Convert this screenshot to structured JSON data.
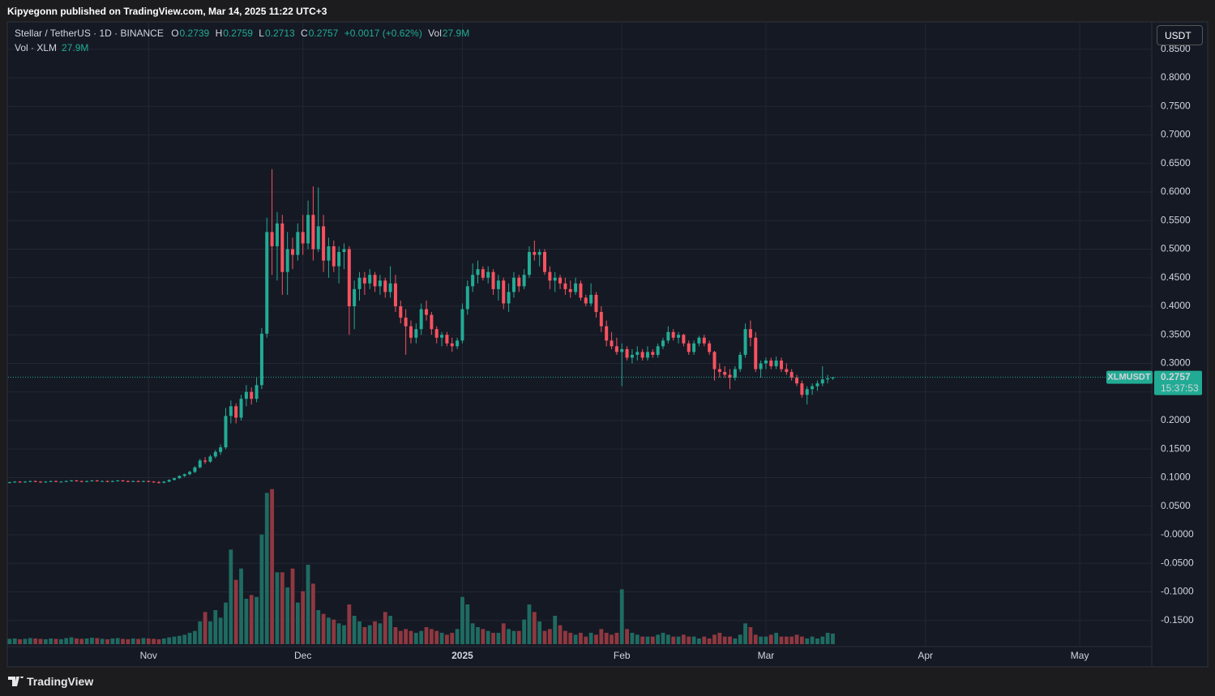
{
  "header": "Kipyegonn published on TradingView.com, Mar 14, 2025 11:22 UTC+3",
  "footer": "TradingView",
  "chart_data": {
    "type": "candlestick",
    "title": "Stellar / TetherUS · 1D · BINANCE",
    "ohlc_legend": [
      {
        "label": "O",
        "value": 0.2739
      },
      {
        "label": "H",
        "value": 0.2759
      },
      {
        "label": "L",
        "value": 0.2713
      },
      {
        "label": "C",
        "value": 0.2757
      }
    ],
    "change": "+0.0017 (+0.62%)",
    "vol_label": "Vol",
    "vol_value": "27.9M",
    "volume_title": "Vol · XLM",
    "volume_value": "27.9M",
    "currency": "USDT",
    "symbol": "XLMUSDT",
    "last_price": 0.2757,
    "countdown": "15:37:53",
    "up_color": "#22ab94",
    "down_color": "#f7525f",
    "up_volume_color": "#1f6b62",
    "down_volume_color": "#8f3840",
    "grid": true,
    "ylim": [
      -0.2,
      0.9
    ],
    "yticks": [
      {
        "value": -0.15,
        "label": "-0.1500"
      },
      {
        "value": -0.1,
        "label": "-0.1000"
      },
      {
        "value": -0.05,
        "label": "-0.0500"
      },
      {
        "value": 0,
        "label": "-0.0000"
      },
      {
        "value": 0.05,
        "label": "0.0500"
      },
      {
        "value": 0.1,
        "label": "0.1000"
      },
      {
        "value": 0.15,
        "label": "0.1500"
      },
      {
        "value": 0.2,
        "label": "0.2000"
      },
      {
        "value": 0.25,
        "label": "0.2500"
      },
      {
        "value": 0.3,
        "label": "0.3000"
      },
      {
        "value": 0.35,
        "label": "0.3500"
      },
      {
        "value": 0.4,
        "label": "0.4000"
      },
      {
        "value": 0.45,
        "label": "0.4500"
      },
      {
        "value": 0.5,
        "label": "0.5000"
      },
      {
        "value": 0.55,
        "label": "0.5500"
      },
      {
        "value": 0.6,
        "label": "0.6000"
      },
      {
        "value": 0.65,
        "label": "0.6500"
      },
      {
        "value": 0.7,
        "label": "0.7000"
      },
      {
        "value": 0.75,
        "label": "0.7500"
      },
      {
        "value": 0.8,
        "label": "0.8000"
      },
      {
        "value": 0.85,
        "label": "0.8500"
      }
    ],
    "xlim": [
      -0.3,
      222
    ],
    "xticks": [
      {
        "value": 27,
        "label": "Nov"
      },
      {
        "value": 57,
        "label": "Dec"
      },
      {
        "value": 88,
        "label": "2025"
      },
      {
        "value": 119,
        "label": "Feb"
      },
      {
        "value": 147,
        "label": "Mar"
      },
      {
        "value": 178,
        "label": "Apr"
      },
      {
        "value": 208,
        "label": "May"
      }
    ],
    "volume_lim": [
      0,
      450
    ],
    "candles": [
      [
        0.091,
        0.093,
        0.09,
        0.092
      ],
      [
        0.092,
        0.094,
        0.091,
        0.093
      ],
      [
        0.093,
        0.094,
        0.091,
        0.092
      ],
      [
        0.092,
        0.094,
        0.091,
        0.093
      ],
      [
        0.093,
        0.095,
        0.092,
        0.094
      ],
      [
        0.094,
        0.095,
        0.092,
        0.093
      ],
      [
        0.093,
        0.094,
        0.091,
        0.092
      ],
      [
        0.092,
        0.094,
        0.091,
        0.093
      ],
      [
        0.093,
        0.095,
        0.092,
        0.094
      ],
      [
        0.094,
        0.095,
        0.092,
        0.093
      ],
      [
        0.093,
        0.094,
        0.092,
        0.093
      ],
      [
        0.093,
        0.095,
        0.092,
        0.094
      ],
      [
        0.094,
        0.096,
        0.093,
        0.095
      ],
      [
        0.095,
        0.096,
        0.093,
        0.094
      ],
      [
        0.094,
        0.095,
        0.092,
        0.093
      ],
      [
        0.093,
        0.095,
        0.092,
        0.094
      ],
      [
        0.094,
        0.096,
        0.093,
        0.095
      ],
      [
        0.095,
        0.096,
        0.093,
        0.094
      ],
      [
        0.094,
        0.095,
        0.093,
        0.094
      ],
      [
        0.094,
        0.095,
        0.092,
        0.093
      ],
      [
        0.093,
        0.095,
        0.092,
        0.094
      ],
      [
        0.094,
        0.096,
        0.093,
        0.095
      ],
      [
        0.095,
        0.096,
        0.093,
        0.094
      ],
      [
        0.094,
        0.095,
        0.092,
        0.093
      ],
      [
        0.093,
        0.095,
        0.092,
        0.094
      ],
      [
        0.094,
        0.095,
        0.092,
        0.093
      ],
      [
        0.093,
        0.095,
        0.092,
        0.094
      ],
      [
        0.094,
        0.095,
        0.092,
        0.093
      ],
      [
        0.093,
        0.094,
        0.091,
        0.092
      ],
      [
        0.092,
        0.094,
        0.09,
        0.091
      ],
      [
        0.091,
        0.094,
        0.09,
        0.093
      ],
      [
        0.093,
        0.097,
        0.092,
        0.096
      ],
      [
        0.096,
        0.1,
        0.095,
        0.099
      ],
      [
        0.099,
        0.104,
        0.098,
        0.103
      ],
      [
        0.103,
        0.107,
        0.101,
        0.106
      ],
      [
        0.106,
        0.112,
        0.104,
        0.11
      ],
      [
        0.11,
        0.12,
        0.108,
        0.118
      ],
      [
        0.118,
        0.133,
        0.116,
        0.13
      ],
      [
        0.13,
        0.136,
        0.124,
        0.128
      ],
      [
        0.128,
        0.14,
        0.126,
        0.137
      ],
      [
        0.137,
        0.148,
        0.134,
        0.145
      ],
      [
        0.145,
        0.158,
        0.14,
        0.153
      ],
      [
        0.153,
        0.222,
        0.15,
        0.208
      ],
      [
        0.208,
        0.235,
        0.195,
        0.225
      ],
      [
        0.225,
        0.23,
        0.195,
        0.205
      ],
      [
        0.205,
        0.245,
        0.2,
        0.238
      ],
      [
        0.238,
        0.262,
        0.225,
        0.25
      ],
      [
        0.25,
        0.258,
        0.228,
        0.238
      ],
      [
        0.238,
        0.275,
        0.232,
        0.262
      ],
      [
        0.262,
        0.362,
        0.255,
        0.352
      ],
      [
        0.352,
        0.555,
        0.345,
        0.53
      ],
      [
        0.53,
        0.64,
        0.455,
        0.505
      ],
      [
        0.505,
        0.565,
        0.445,
        0.545
      ],
      [
        0.545,
        0.56,
        0.42,
        0.46
      ],
      [
        0.46,
        0.53,
        0.42,
        0.5
      ],
      [
        0.5,
        0.52,
        0.465,
        0.49
      ],
      [
        0.49,
        0.545,
        0.48,
        0.53
      ],
      [
        0.53,
        0.56,
        0.49,
        0.51
      ],
      [
        0.51,
        0.585,
        0.5,
        0.56
      ],
      [
        0.56,
        0.61,
        0.48,
        0.5
      ],
      [
        0.5,
        0.608,
        0.495,
        0.54
      ],
      [
        0.54,
        0.56,
        0.46,
        0.48
      ],
      [
        0.48,
        0.52,
        0.45,
        0.505
      ],
      [
        0.505,
        0.515,
        0.46,
        0.47
      ],
      [
        0.47,
        0.505,
        0.44,
        0.495
      ],
      [
        0.495,
        0.51,
        0.465,
        0.5
      ],
      [
        0.5,
        0.505,
        0.35,
        0.4
      ],
      [
        0.4,
        0.445,
        0.36,
        0.43
      ],
      [
        0.43,
        0.46,
        0.41,
        0.45
      ],
      [
        0.45,
        0.46,
        0.42,
        0.44
      ],
      [
        0.44,
        0.465,
        0.43,
        0.455
      ],
      [
        0.455,
        0.46,
        0.425,
        0.435
      ],
      [
        0.435,
        0.455,
        0.42,
        0.445
      ],
      [
        0.445,
        0.45,
        0.415,
        0.425
      ],
      [
        0.425,
        0.47,
        0.415,
        0.44
      ],
      [
        0.44,
        0.455,
        0.39,
        0.4
      ],
      [
        0.4,
        0.41,
        0.37,
        0.38
      ],
      [
        0.38,
        0.395,
        0.315,
        0.365
      ],
      [
        0.365,
        0.375,
        0.335,
        0.345
      ],
      [
        0.345,
        0.37,
        0.335,
        0.36
      ],
      [
        0.36,
        0.405,
        0.35,
        0.395
      ],
      [
        0.395,
        0.41,
        0.375,
        0.385
      ],
      [
        0.385,
        0.39,
        0.35,
        0.36
      ],
      [
        0.36,
        0.365,
        0.335,
        0.345
      ],
      [
        0.345,
        0.355,
        0.33,
        0.35
      ],
      [
        0.35,
        0.355,
        0.33,
        0.335
      ],
      [
        0.335,
        0.345,
        0.32,
        0.33
      ],
      [
        0.33,
        0.345,
        0.325,
        0.34
      ],
      [
        0.34,
        0.405,
        0.335,
        0.395
      ],
      [
        0.395,
        0.445,
        0.385,
        0.435
      ],
      [
        0.435,
        0.475,
        0.425,
        0.455
      ],
      [
        0.455,
        0.48,
        0.44,
        0.465
      ],
      [
        0.465,
        0.47,
        0.445,
        0.45
      ],
      [
        0.45,
        0.47,
        0.44,
        0.46
      ],
      [
        0.46,
        0.465,
        0.42,
        0.43
      ],
      [
        0.43,
        0.455,
        0.41,
        0.445
      ],
      [
        0.445,
        0.45,
        0.395,
        0.405
      ],
      [
        0.405,
        0.44,
        0.39,
        0.425
      ],
      [
        0.425,
        0.46,
        0.415,
        0.45
      ],
      [
        0.45,
        0.455,
        0.425,
        0.435
      ],
      [
        0.435,
        0.465,
        0.43,
        0.455
      ],
      [
        0.455,
        0.505,
        0.45,
        0.495
      ],
      [
        0.495,
        0.515,
        0.48,
        0.49
      ],
      [
        0.49,
        0.5,
        0.47,
        0.495
      ],
      [
        0.495,
        0.5,
        0.455,
        0.46
      ],
      [
        0.46,
        0.47,
        0.43,
        0.445
      ],
      [
        0.445,
        0.46,
        0.425,
        0.45
      ],
      [
        0.45,
        0.455,
        0.43,
        0.44
      ],
      [
        0.44,
        0.45,
        0.42,
        0.43
      ],
      [
        0.43,
        0.445,
        0.415,
        0.425
      ],
      [
        0.425,
        0.45,
        0.42,
        0.44
      ],
      [
        0.44,
        0.445,
        0.41,
        0.415
      ],
      [
        0.415,
        0.42,
        0.4,
        0.405
      ],
      [
        0.405,
        0.44,
        0.4,
        0.42
      ],
      [
        0.42,
        0.425,
        0.38,
        0.39
      ],
      [
        0.39,
        0.4,
        0.355,
        0.365
      ],
      [
        0.365,
        0.375,
        0.33,
        0.34
      ],
      [
        0.34,
        0.355,
        0.325,
        0.33
      ],
      [
        0.33,
        0.345,
        0.315,
        0.32
      ],
      [
        0.32,
        0.335,
        0.26,
        0.325
      ],
      [
        0.325,
        0.33,
        0.305,
        0.31
      ],
      [
        0.31,
        0.325,
        0.3,
        0.315
      ],
      [
        0.315,
        0.33,
        0.305,
        0.32
      ],
      [
        0.32,
        0.325,
        0.305,
        0.31
      ],
      [
        0.31,
        0.33,
        0.305,
        0.32
      ],
      [
        0.32,
        0.325,
        0.31,
        0.315
      ],
      [
        0.315,
        0.335,
        0.31,
        0.33
      ],
      [
        0.33,
        0.345,
        0.325,
        0.34
      ],
      [
        0.34,
        0.365,
        0.335,
        0.355
      ],
      [
        0.355,
        0.36,
        0.34,
        0.345
      ],
      [
        0.345,
        0.355,
        0.335,
        0.35
      ],
      [
        0.35,
        0.352,
        0.33,
        0.335
      ],
      [
        0.335,
        0.34,
        0.315,
        0.32
      ],
      [
        0.32,
        0.34,
        0.315,
        0.335
      ],
      [
        0.335,
        0.348,
        0.33,
        0.345
      ],
      [
        0.345,
        0.35,
        0.33,
        0.335
      ],
      [
        0.335,
        0.34,
        0.315,
        0.32
      ],
      [
        0.32,
        0.322,
        0.27,
        0.29
      ],
      [
        0.29,
        0.3,
        0.275,
        0.285
      ],
      [
        0.285,
        0.295,
        0.275,
        0.28
      ],
      [
        0.28,
        0.29,
        0.255,
        0.275
      ],
      [
        0.275,
        0.295,
        0.27,
        0.29
      ],
      [
        0.29,
        0.32,
        0.285,
        0.315
      ],
      [
        0.315,
        0.37,
        0.31,
        0.36
      ],
      [
        0.36,
        0.375,
        0.33,
        0.345
      ],
      [
        0.345,
        0.355,
        0.285,
        0.29
      ],
      [
        0.29,
        0.305,
        0.275,
        0.3
      ],
      [
        0.3,
        0.31,
        0.29,
        0.305
      ],
      [
        0.305,
        0.31,
        0.29,
        0.295
      ],
      [
        0.295,
        0.312,
        0.29,
        0.305
      ],
      [
        0.305,
        0.31,
        0.285,
        0.29
      ],
      [
        0.29,
        0.3,
        0.28,
        0.285
      ],
      [
        0.285,
        0.29,
        0.27,
        0.275
      ],
      [
        0.275,
        0.28,
        0.26,
        0.265
      ],
      [
        0.265,
        0.27,
        0.24,
        0.245
      ],
      [
        0.245,
        0.26,
        0.228,
        0.255
      ],
      [
        0.255,
        0.265,
        0.245,
        0.26
      ],
      [
        0.26,
        0.27,
        0.252,
        0.265
      ],
      [
        0.265,
        0.295,
        0.26,
        0.272
      ],
      [
        0.272,
        0.28,
        0.265,
        0.2739
      ],
      [
        0.2739,
        0.2759,
        0.2713,
        0.2757
      ]
    ],
    "volume": [
      14,
      15,
      13,
      14,
      16,
      15,
      14,
      13,
      15,
      14,
      13,
      16,
      18,
      15,
      14,
      15,
      17,
      16,
      14,
      13,
      15,
      16,
      14,
      13,
      15,
      14,
      16,
      15,
      14,
      13,
      15,
      18,
      20,
      22,
      25,
      30,
      35,
      60,
      85,
      60,
      90,
      70,
      110,
      250,
      170,
      200,
      120,
      130,
      125,
      290,
      400,
      410,
      190,
      190,
      150,
      200,
      110,
      140,
      210,
      160,
      90,
      80,
      70,
      65,
      55,
      50,
      105,
      75,
      60,
      45,
      50,
      60,
      55,
      85,
      75,
      45,
      35,
      40,
      35,
      30,
      35,
      45,
      40,
      35,
      30,
      25,
      30,
      40,
      125,
      105,
      55,
      45,
      40,
      35,
      30,
      30,
      55,
      40,
      35,
      35,
      65,
      105,
      85,
      60,
      35,
      40,
      75,
      50,
      35,
      30,
      25,
      30,
      20,
      30,
      25,
      40,
      30,
      25,
      30,
      145,
      40,
      30,
      25,
      20,
      20,
      20,
      25,
      30,
      25,
      20,
      20,
      25,
      20,
      20,
      15,
      20,
      15,
      25,
      30,
      20,
      20,
      15,
      25,
      55,
      45,
      25,
      20,
      20,
      25,
      30,
      20,
      20,
      20,
      25,
      20,
      15,
      20,
      15,
      20,
      30,
      28
    ]
  }
}
